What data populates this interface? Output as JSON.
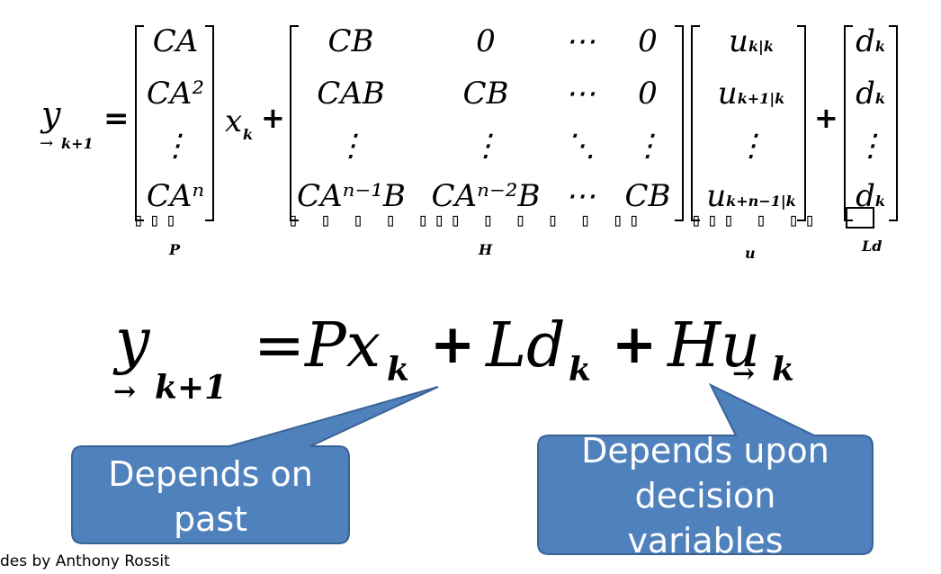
{
  "matrix_eq": {
    "lhs": "y",
    "lhs_sub": "k+1",
    "equals": "=",
    "P": [
      "CA",
      "CA²",
      "⋮",
      "CAⁿ"
    ],
    "x": "x",
    "x_sub": "k",
    "plus1": "+",
    "H": [
      [
        "CB",
        "0",
        "⋯",
        "0"
      ],
      [
        "CAB",
        "CB",
        "⋯",
        "0"
      ],
      [
        "⋮",
        "⋮",
        "⋱",
        "⋮"
      ],
      [
        "CAⁿ⁻¹B",
        "CAⁿ⁻²B",
        "⋯",
        "CB"
      ]
    ],
    "u": [
      "u",
      "u",
      "⋮",
      "u"
    ],
    "u_subs": [
      "k|k",
      "k+1|k",
      "",
      "k+n−1|k"
    ],
    "plus2": "+",
    "d": [
      "d",
      "d",
      "⋮",
      "d"
    ],
    "d_sub": "k",
    "label_P": "P",
    "label_H": "H",
    "label_u": "u",
    "label_Ld": "Ld"
  },
  "compact_eq": {
    "lhs": "y",
    "lhs_sub": "k+1",
    "rhs1": "=Px",
    "rhs1_sub": "k",
    "plus1": "+",
    "rhs2": "Ld",
    "rhs2_sub": "k",
    "plus2": "+",
    "rhs3": "Hu",
    "rhs3_sub": "k"
  },
  "callouts": {
    "left": "Depends on\npast",
    "right": "Depends upon\ndecision\nvariables"
  },
  "footer": "des by Anthony Rossit",
  "colors": {
    "callout_fill": "#4f81bd",
    "callout_stroke": "#3a6496"
  }
}
